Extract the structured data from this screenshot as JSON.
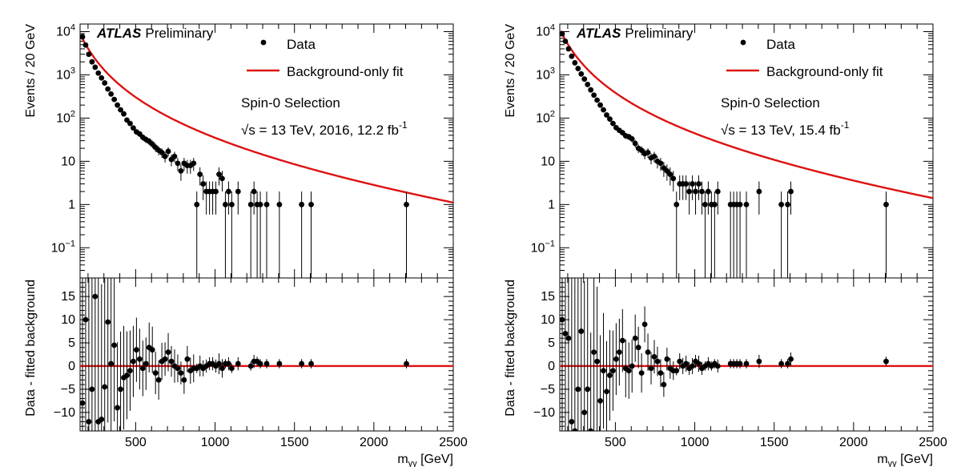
{
  "chart_data": [
    {
      "type": "scatter",
      "panel": "left",
      "experiment": "ATLAS",
      "status": "Preliminary",
      "selection": "Spin-0 Selection",
      "energy_text": "√s = 13 TeV, 2016, 12.2 fb",
      "energy_sup": "-1",
      "legend": {
        "placement": "top-right",
        "data_label": "Data",
        "fit_label": "Background-only fit"
      },
      "fit_color": "#dd1111",
      "xlabel": "m",
      "xlabel_sub": "γγ",
      "xlabel_unit": " [GeV]",
      "ylabel": "Events / 20 GeV",
      "ratio_ylabel": "Data - fitted background",
      "xlim": [
        150,
        2500
      ],
      "ylim": [
        0.02,
        15000
      ],
      "yscale": "log",
      "ratio_ylim": [
        -14,
        19
      ],
      "xticks": [
        500,
        1000,
        1500,
        2000,
        2500
      ],
      "yticks_top": [
        "10^-1",
        "1",
        "10",
        "10^2",
        "10^3",
        "10^4"
      ],
      "yticks_ratio": [
        -10,
        -5,
        0,
        5,
        10,
        15
      ],
      "fit": {
        "A": 7500,
        "k": 0.01,
        "p": 0.835
      },
      "series": [
        {
          "name": "Data",
          "x": [
            165,
            185,
            205,
            225,
            245,
            265,
            285,
            305,
            325,
            345,
            365,
            385,
            405,
            425,
            445,
            465,
            485,
            505,
            525,
            545,
            565,
            585,
            605,
            625,
            645,
            665,
            685,
            705,
            725,
            745,
            765,
            785,
            805,
            825,
            845,
            865,
            885,
            905,
            925,
            945,
            965,
            985,
            1005,
            1025,
            1045,
            1065,
            1085,
            1105,
            1145,
            1225,
            1245,
            1265,
            1285,
            1325,
            1405,
            1545,
            1605,
            2205
          ],
          "y": [
            7600,
            4900,
            3000,
            2000,
            1500,
            1100,
            850,
            650,
            470,
            360,
            270,
            200,
            155,
            125,
            90,
            75,
            59,
            48,
            43,
            36,
            32,
            29,
            25,
            21,
            18,
            16,
            13,
            17,
            11,
            13,
            9,
            6,
            9,
            8,
            8,
            9,
            1,
            5,
            3,
            2,
            2,
            2,
            2,
            5,
            4,
            1,
            2,
            1,
            2,
            1,
            2,
            1,
            1,
            1,
            1,
            1,
            1,
            1
          ],
          "residual": [
            -8,
            10,
            -12,
            -5,
            15,
            -12,
            -11.5,
            -4.5,
            9.5,
            0.5,
            4.5,
            -9,
            -5,
            -2.5,
            -2,
            -1,
            1,
            3.5,
            1.5,
            -0.5,
            0.5,
            4,
            3.5,
            -1.5,
            -3,
            1,
            1.5,
            3,
            1,
            0,
            -0.5,
            -1.5,
            -3,
            1.5,
            -1,
            -0.5,
            -0.5,
            0,
            -0.5,
            0,
            0.5,
            0.5,
            0,
            0.5,
            -0.5,
            0.5,
            0.5,
            -0.5,
            0.5,
            0,
            1,
            1,
            0.5,
            0.5,
            0.5,
            0.5,
            0.5,
            0.5
          ]
        },
        {
          "name": "Background-only fit"
        }
      ]
    },
    {
      "type": "scatter",
      "panel": "right",
      "experiment": "ATLAS",
      "status": "Preliminary",
      "selection": "Spin-0 Selection",
      "energy_text": "√s = 13 TeV, 15.4 fb",
      "energy_sup": "-1",
      "legend": {
        "placement": "top-right",
        "data_label": "Data",
        "fit_label": "Background-only fit"
      },
      "fit_color": "#dd1111",
      "xlabel": "m",
      "xlabel_sub": "γγ",
      "xlabel_unit": " [GeV]",
      "ylabel": "Events / 20 GeV",
      "ratio_ylabel": "Data - fitted background",
      "xlim": [
        150,
        2500
      ],
      "ylim": [
        0.02,
        15000
      ],
      "yscale": "log",
      "ratio_ylim": [
        -14,
        19
      ],
      "xticks": [
        500,
        1000,
        1500,
        2000,
        2500
      ],
      "yticks_top": [
        "10^-1",
        "1",
        "10",
        "10^2",
        "10^3",
        "10^4"
      ],
      "yticks_ratio": [
        -10,
        -5,
        0,
        5,
        10,
        15
      ],
      "fit": {
        "A": 9500,
        "k": 0.01,
        "p": 0.835
      },
      "series": [
        {
          "name": "Data",
          "x": [
            165,
            185,
            205,
            225,
            245,
            265,
            285,
            305,
            325,
            345,
            365,
            385,
            405,
            425,
            445,
            465,
            485,
            505,
            525,
            545,
            565,
            585,
            605,
            625,
            645,
            665,
            685,
            705,
            725,
            745,
            765,
            785,
            805,
            825,
            845,
            865,
            885,
            905,
            925,
            945,
            965,
            985,
            1005,
            1025,
            1045,
            1065,
            1085,
            1105,
            1125,
            1145,
            1225,
            1245,
            1265,
            1285,
            1325,
            1405,
            1545,
            1585,
            1605,
            2205
          ],
          "y": [
            9000,
            6000,
            4000,
            2700,
            1900,
            1400,
            1050,
            800,
            600,
            450,
            340,
            260,
            200,
            155,
            118,
            95,
            75,
            60,
            52,
            46,
            39,
            37,
            33,
            26,
            20,
            18,
            15,
            16,
            12,
            13,
            10,
            9,
            7,
            6,
            5,
            4,
            1,
            3,
            3,
            3,
            2,
            3,
            2,
            3,
            2,
            1,
            2,
            1,
            1,
            2,
            1,
            1,
            1,
            1,
            1,
            2,
            1,
            1,
            2,
            1
          ],
          "residual": [
            10,
            7,
            6,
            -12,
            -14,
            -5,
            7.5,
            -10,
            -5,
            -14,
            3,
            1,
            -7.5,
            -1,
            -5.5,
            -2,
            -1,
            1.5,
            3,
            5.5,
            -0.5,
            -1,
            0,
            6,
            4,
            -1.5,
            9,
            3,
            -0.5,
            2,
            1,
            -1.5,
            -4,
            1.5,
            -0.5,
            -1,
            -1,
            1,
            0,
            0.5,
            -0.5,
            0,
            1,
            0.5,
            -0.5,
            0,
            0.5,
            0,
            0.5,
            0,
            0.5,
            0.5,
            0.5,
            0.5,
            0.5,
            1,
            0.5,
            0.5,
            1.5,
            1
          ]
        },
        {
          "name": "Background-only fit"
        }
      ]
    }
  ]
}
